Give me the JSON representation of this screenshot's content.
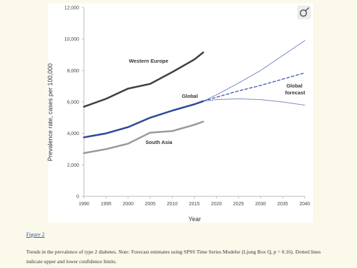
{
  "chart_data": {
    "type": "line",
    "xlabel": "Year",
    "ylabel": "Prevalence rate, cases per 100,000",
    "xlim": [
      1990,
      2040
    ],
    "xticks": [
      1990,
      1995,
      2000,
      2005,
      2010,
      2015,
      2020,
      2025,
      2030,
      2035,
      2040
    ],
    "ylim": [
      0,
      12000
    ],
    "yticks": [
      0,
      {
        "value": 2000,
        "label": "2,000"
      },
      {
        "value": 4000,
        "label": "4,000"
      },
      {
        "value": 6000,
        "label": "6,000"
      },
      {
        "value": 8000,
        "label": "8,000"
      },
      {
        "value": 10000,
        "label": "10,000"
      },
      {
        "value": 12000,
        "label": "12,000"
      }
    ],
    "grid": false,
    "series": [
      {
        "name": "Western Europe",
        "color": "#404040",
        "style": "solid",
        "x": [
          1990,
          1995,
          2000,
          2005,
          2010,
          2015,
          2017
        ],
        "values": [
          5700,
          6200,
          6850,
          7150,
          7900,
          8700,
          9150
        ]
      },
      {
        "name": "Global",
        "color": "#2e4b9a",
        "style": "solid",
        "x": [
          1990,
          1995,
          2000,
          2005,
          2010,
          2015,
          2017
        ],
        "values": [
          3750,
          4000,
          4400,
          5000,
          5450,
          5850,
          6050
        ]
      },
      {
        "name": "South Asia",
        "color": "#9a9a9a",
        "style": "solid",
        "x": [
          1990,
          1995,
          2000,
          2005,
          2010,
          2015,
          2017
        ],
        "values": [
          2750,
          3000,
          3350,
          4050,
          4150,
          4550,
          4750
        ]
      },
      {
        "name": "Global forecast",
        "color": "#3a56a8",
        "style": "dashed",
        "x": [
          2017,
          2020,
          2025,
          2030,
          2035,
          2040
        ],
        "values": [
          6050,
          6300,
          6700,
          7050,
          7450,
          7850
        ]
      },
      {
        "color": "#3a56a8",
        "style": "dotted",
        "x": [
          2017,
          2020,
          2025,
          2030,
          2035,
          2040
        ],
        "values": [
          6050,
          6450,
          7200,
          8000,
          8950,
          9900
        ]
      },
      {
        "color": "#3a56a8",
        "style": "dotted",
        "x": [
          2017,
          2020,
          2025,
          2030,
          2035,
          2040
        ],
        "values": [
          6050,
          6150,
          6200,
          6150,
          6000,
          5800
        ]
      }
    ]
  },
  "figure": {
    "label": "Figure 2",
    "caption": [
      {
        "text": "Trends in the prevalence of type 2 diabetes. "
      },
      {
        "text": "Note:",
        "italic": true
      },
      {
        "text": " Forecast estimates using SPSS Time Series Modeler (Ljung Box Q, "
      },
      {
        "text": "p",
        "italic": true
      },
      {
        "text": " = 0.16). Dotted lines indicate upper and lower confidence limits."
      }
    ]
  }
}
